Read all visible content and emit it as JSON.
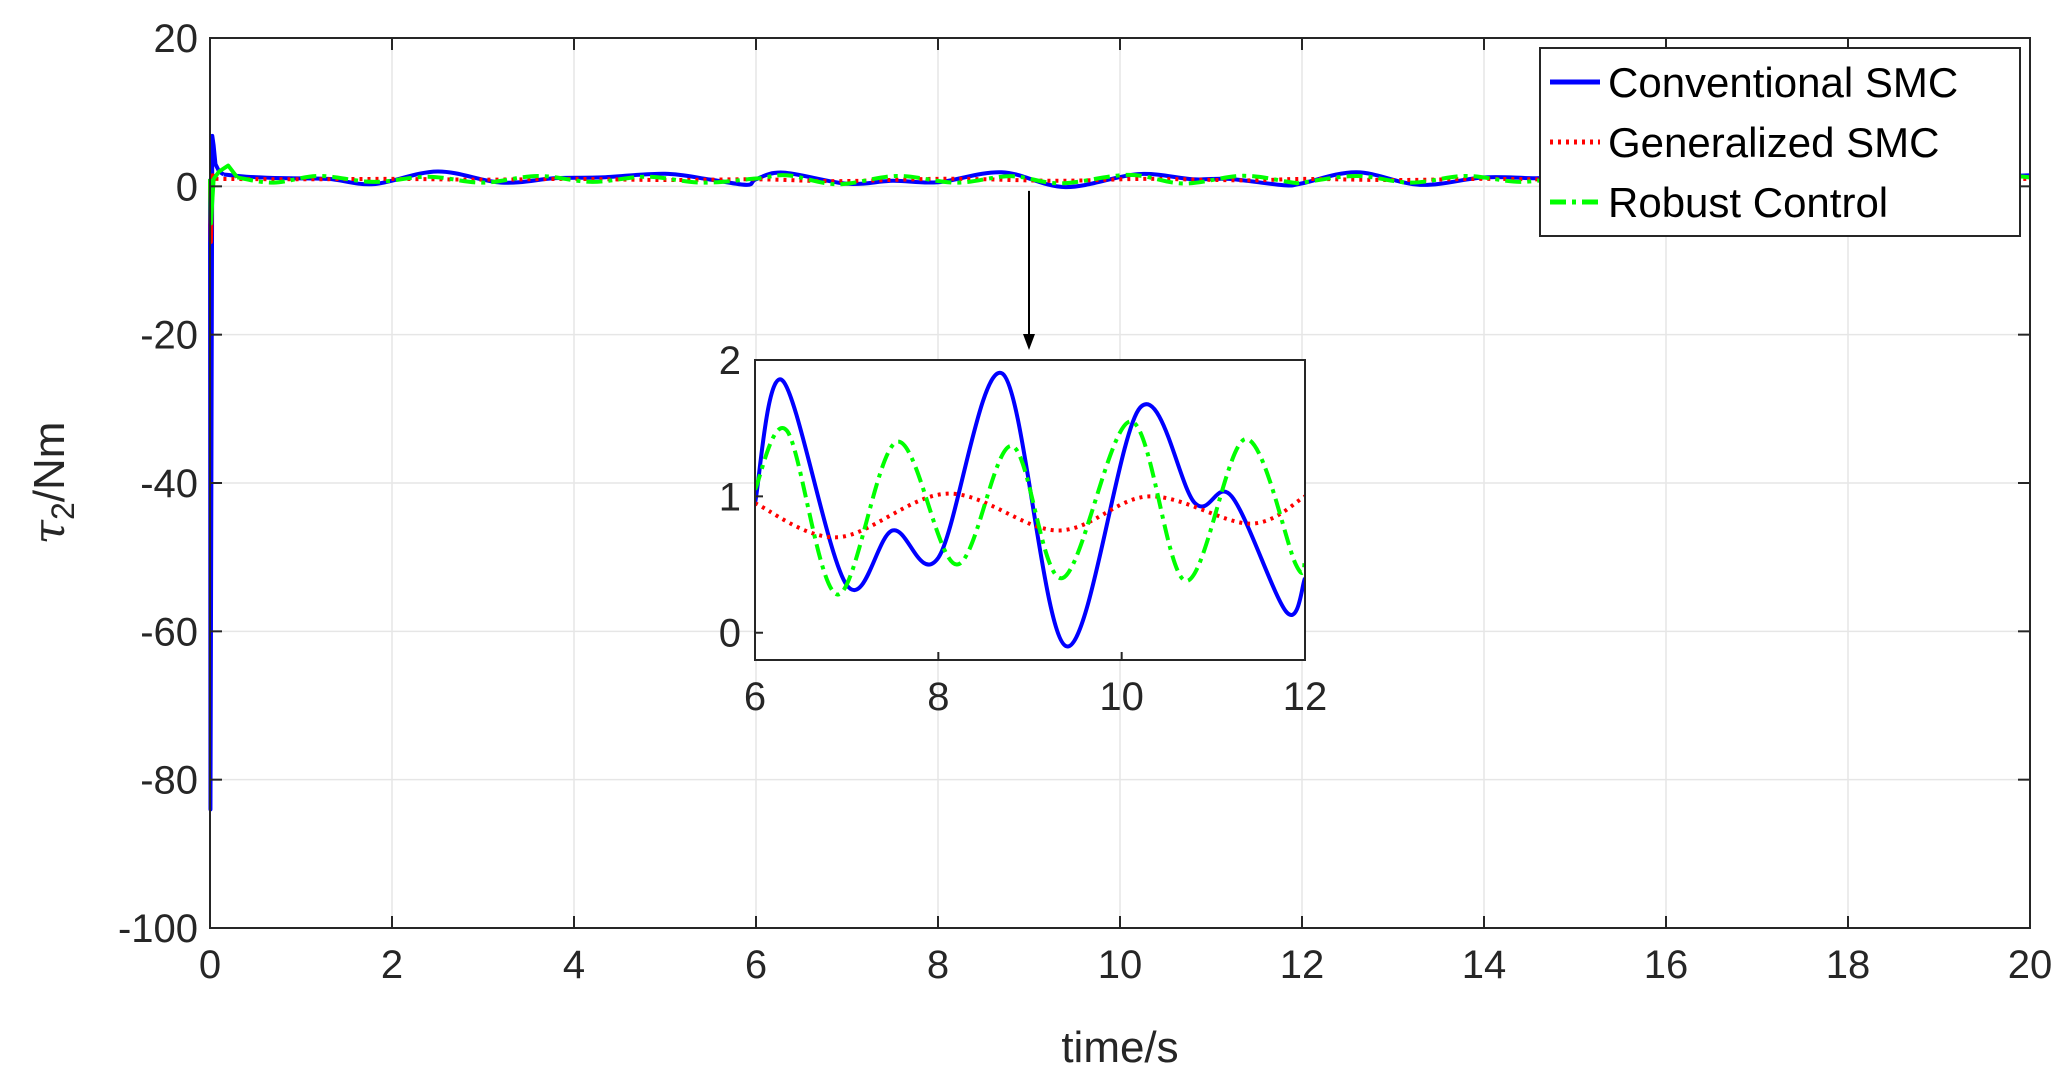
{
  "chart_data": {
    "type": "line",
    "xlabel": "time/s",
    "ylabel": {
      "symbol": "τ",
      "subscript": "2",
      "unit": "/Nm"
    },
    "xlim": [
      0,
      20
    ],
    "ylim": [
      -100,
      20
    ],
    "xticks": [
      "0",
      "2",
      "4",
      "6",
      "8",
      "10",
      "12",
      "14",
      "16",
      "18",
      "20"
    ],
    "yticks": [
      "20",
      "0",
      "-20",
      "-40",
      "-60",
      "-80",
      "-100"
    ],
    "grid": true,
    "legend_position": "top-right",
    "series": [
      {
        "name": "Conventional SMC",
        "color": "#0000ff",
        "style": "solid",
        "transient": [
          [
            0,
            1.0
          ],
          [
            0.005,
            -84
          ],
          [
            0.015,
            -40
          ],
          [
            0.025,
            6.8
          ],
          [
            0.04,
            5.5
          ],
          [
            0.06,
            3.0
          ],
          [
            0.1,
            2.0
          ],
          [
            0.15,
            1.6
          ]
        ],
        "points": [
          [
            0.15,
            1.6
          ],
          [
            0.4,
            1.3
          ],
          [
            0.8,
            1.1
          ],
          [
            1.3,
            1.0
          ],
          [
            1.8,
            0.3
          ],
          [
            2.5,
            2.0
          ],
          [
            3.2,
            0.5
          ],
          [
            3.8,
            1.1
          ],
          [
            4.3,
            1.2
          ],
          [
            5.0,
            1.7
          ],
          [
            5.5,
            0.9
          ],
          [
            5.9,
            0.2
          ],
          [
            6.0,
            0.95
          ],
          [
            6.3,
            1.85
          ],
          [
            7.0,
            0.35
          ],
          [
            7.5,
            0.75
          ],
          [
            8.0,
            0.55
          ],
          [
            8.7,
            1.9
          ],
          [
            9.4,
            -0.1
          ],
          [
            10.2,
            1.65
          ],
          [
            10.8,
            0.95
          ],
          [
            11.2,
            1.0
          ],
          [
            11.8,
            0.15
          ],
          [
            12.0,
            0.4
          ],
          [
            12.6,
            1.9
          ],
          [
            13.3,
            0.2
          ],
          [
            14.0,
            1.2
          ],
          [
            14.6,
            1.1
          ],
          [
            15.2,
            1.4
          ],
          [
            15.8,
            0.8
          ],
          [
            16.4,
            1.2
          ],
          [
            17.0,
            1.5
          ],
          [
            17.6,
            0.9
          ],
          [
            18.2,
            1.3
          ],
          [
            18.8,
            1.0
          ],
          [
            19.4,
            1.2
          ],
          [
            20.0,
            1.5
          ]
        ]
      },
      {
        "name": "Generalized SMC",
        "color": "#ff0000",
        "style": "dotted",
        "transient": [
          [
            0,
            1.0
          ],
          [
            0.01,
            -7.5
          ],
          [
            0.03,
            1.5
          ],
          [
            0.06,
            1.0
          ]
        ],
        "points": [
          [
            0.06,
            1.0
          ],
          [
            1.0,
            0.95
          ],
          [
            2.0,
            1.0
          ],
          [
            3.0,
            0.9
          ],
          [
            4.0,
            1.0
          ],
          [
            5.0,
            0.85
          ],
          [
            6.0,
            0.95
          ],
          [
            6.9,
            0.7
          ],
          [
            8.1,
            1.02
          ],
          [
            9.3,
            0.75
          ],
          [
            10.3,
            1.0
          ],
          [
            11.4,
            0.8
          ],
          [
            12.0,
            1.0
          ],
          [
            13.0,
            0.85
          ],
          [
            14.0,
            1.0
          ],
          [
            15.0,
            0.9
          ],
          [
            16.0,
            1.0
          ],
          [
            17.0,
            0.9
          ],
          [
            18.0,
            1.0
          ],
          [
            19.0,
            0.95
          ],
          [
            20.0,
            1.0
          ]
        ]
      },
      {
        "name": "Robust Control",
        "color": "#00ff00",
        "style": "dashdot",
        "transient": [
          [
            0,
            1.0
          ],
          [
            0.01,
            -5.0
          ],
          [
            0.04,
            1.0
          ],
          [
            0.1,
            2.0
          ],
          [
            0.2,
            2.8
          ],
          [
            0.3,
            1.2
          ]
        ],
        "points": [
          [
            0.3,
            1.2
          ],
          [
            0.7,
            0.5
          ],
          [
            1.2,
            1.4
          ],
          [
            1.8,
            0.6
          ],
          [
            2.4,
            1.3
          ],
          [
            3.0,
            0.5
          ],
          [
            3.6,
            1.4
          ],
          [
            4.2,
            0.6
          ],
          [
            4.8,
            1.3
          ],
          [
            5.4,
            0.5
          ],
          [
            6.0,
            1.05
          ],
          [
            6.35,
            1.48
          ],
          [
            6.9,
            0.28
          ],
          [
            7.55,
            1.4
          ],
          [
            8.2,
            0.5
          ],
          [
            8.8,
            1.37
          ],
          [
            9.35,
            0.4
          ],
          [
            10.1,
            1.55
          ],
          [
            10.7,
            0.38
          ],
          [
            11.35,
            1.42
          ],
          [
            11.9,
            0.5
          ],
          [
            12.0,
            0.52
          ],
          [
            12.6,
            1.4
          ],
          [
            13.2,
            0.5
          ],
          [
            13.8,
            1.4
          ],
          [
            14.4,
            0.6
          ],
          [
            15.0,
            1.3
          ],
          [
            15.6,
            0.5
          ],
          [
            16.2,
            1.4
          ],
          [
            16.8,
            0.6
          ],
          [
            17.4,
            1.3
          ],
          [
            18.0,
            0.5
          ],
          [
            18.6,
            1.4
          ],
          [
            19.2,
            0.6
          ],
          [
            19.8,
            1.3
          ],
          [
            20.0,
            1.2
          ]
        ]
      }
    ],
    "inset": {
      "xlim": [
        6,
        12
      ],
      "ylim": [
        -0.2,
        2.0
      ],
      "xticks": [
        "6",
        "8",
        "10",
        "12"
      ],
      "yticks": [
        "2",
        "1",
        "0"
      ],
      "pointer_target": [
        9,
        1.0
      ]
    }
  }
}
